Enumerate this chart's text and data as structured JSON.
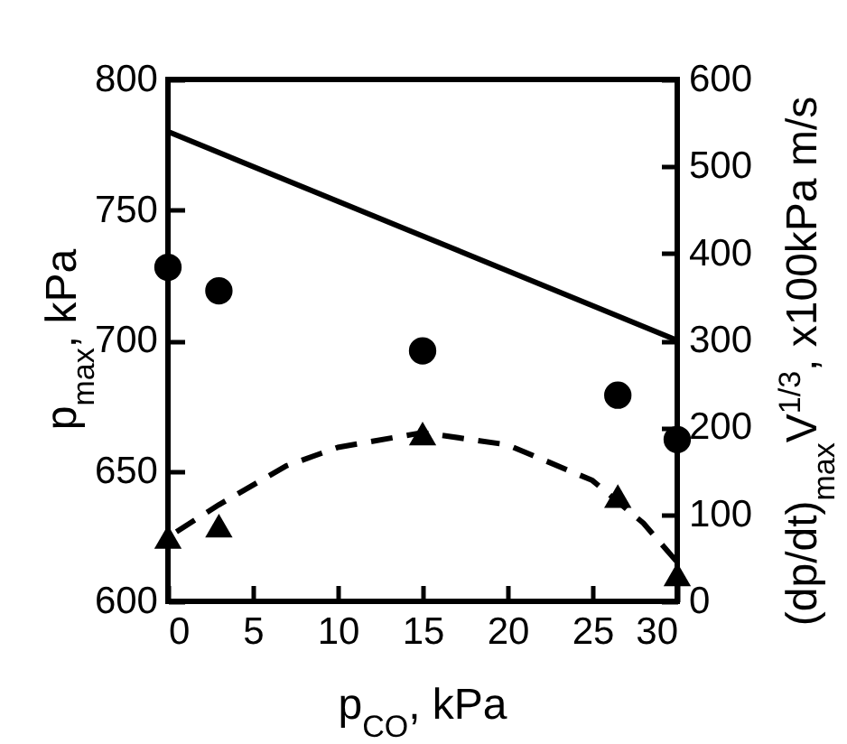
{
  "chart_data": {
    "type": "scatter",
    "xlabel": "p$_{CO}$, kPa",
    "ylabel": "p$_{max}$, kPa",
    "y2label": "(dp/dt)$_{max}$V$^{1/3}$, x100kPa m/s",
    "xlim": [
      0,
      30
    ],
    "xticks": [
      0,
      5,
      10,
      15,
      20,
      25,
      30
    ],
    "ylim": [
      600,
      800
    ],
    "yticks": [
      600,
      650,
      700,
      750,
      800
    ],
    "y2lim": [
      0,
      600
    ],
    "y2ticks": [
      0,
      100,
      200,
      300,
      400,
      500,
      600
    ],
    "series": [
      {
        "marker": "circle",
        "color": "#000000",
        "x": [
          0,
          3,
          15,
          26.5,
          30
        ],
        "values": [
          728,
          719,
          696,
          679,
          662
        ]
      },
      {
        "type": "line",
        "line_style": "solid",
        "color": "#000000",
        "x": [
          0,
          30
        ],
        "values": [
          780,
          700
        ]
      },
      {
        "type": "scatter",
        "marker": "triangle",
        "axis": "y2",
        "color": "#000000",
        "x": [
          0,
          3,
          15,
          26.5,
          30
        ],
        "values": [
          74,
          87,
          193,
          121,
          31
        ]
      },
      {
        "type": "line",
        "line_style": "dashed",
        "axis": "y2",
        "color": "#000000",
        "x": [
          0.5,
          3,
          7,
          10,
          15,
          20,
          25,
          28,
          30
        ],
        "values": [
          80,
          111,
          156,
          177,
          194,
          180,
          139,
          90,
          45
        ]
      }
    ]
  }
}
